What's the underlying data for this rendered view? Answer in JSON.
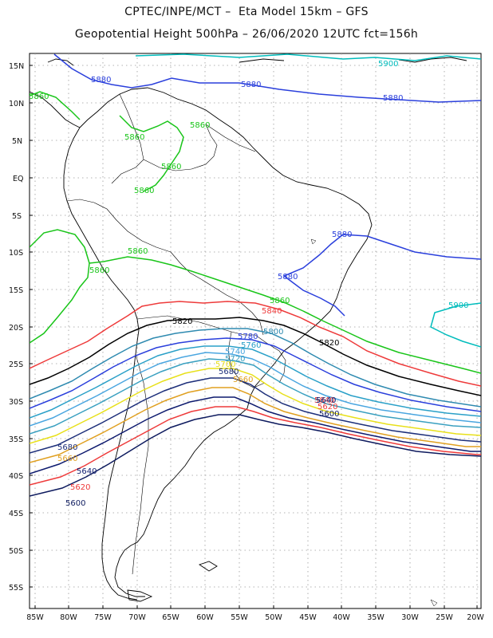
{
  "title_line1": "CPTEC/INPE/MCT –  Eta Model 15km – GFS",
  "title_line2": "Geopotential Height 500hPa – 26/06/2020 12UTC fct=156h",
  "map": {
    "lon_range": [
      -86,
      -20
    ],
    "lat_range": [
      -58,
      16
    ],
    "grid": true,
    "lat_ticks": [
      "15N",
      "10N",
      "5N",
      "EQ",
      "5S",
      "10S",
      "15S",
      "20S",
      "25S",
      "30S",
      "35S",
      "40S",
      "45S",
      "50S",
      "55S"
    ],
    "lon_ticks": [
      "85W",
      "80W",
      "75W",
      "70W",
      "65W",
      "60W",
      "55W",
      "50W",
      "45W",
      "40W",
      "35W",
      "30W",
      "25W",
      "20W"
    ]
  },
  "contours": [
    {
      "value": "5900",
      "color": "#00bcbc"
    },
    {
      "value": "5880",
      "color": "#2a3fdc"
    },
    {
      "value": "5860",
      "color": "#19c519"
    },
    {
      "value": "5840",
      "color": "#ee3a3a"
    },
    {
      "value": "5820",
      "color": "#000000"
    },
    {
      "value": "5800",
      "color": "#2e8ab0"
    },
    {
      "value": "5780",
      "color": "#2a3fdc"
    },
    {
      "value": "5760",
      "color": "#2aa0c8"
    },
    {
      "value": "5740",
      "color": "#4aa6e0"
    },
    {
      "value": "5720",
      "color": "#3aa0c0"
    },
    {
      "value": "5700",
      "color": "#e8e01a"
    },
    {
      "value": "5680",
      "color": "#1d2f7a"
    },
    {
      "value": "5660",
      "color": "#e0a020"
    },
    {
      "value": "5640",
      "color": "#0d1a6e"
    },
    {
      "value": "5620",
      "color": "#ee3a3a"
    },
    {
      "value": "5600",
      "color": "#0d1a5e"
    }
  ]
}
